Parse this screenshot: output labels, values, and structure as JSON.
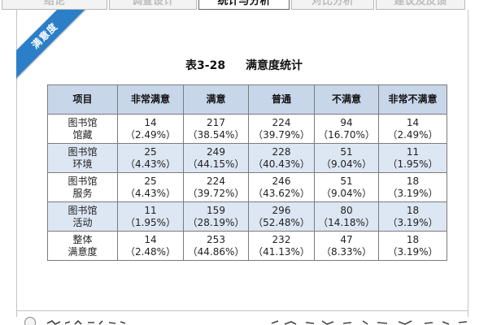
{
  "tabs": [
    {
      "label": "结论",
      "active": false
    },
    {
      "label": "调查设计",
      "active": false
    },
    {
      "label": "统计与分析",
      "active": true
    },
    {
      "label": "对比分析",
      "active": false
    },
    {
      "label": "建议及反馈",
      "active": false
    }
  ],
  "ribbon": {
    "label": "满意度"
  },
  "table": {
    "caption_number": "表3-28",
    "caption_title": "满意度统计",
    "headers": [
      "项目",
      "非常满意",
      "满意",
      "普通",
      "不满意",
      "非常不满意"
    ],
    "rows": [
      {
        "label": [
          "图书馆",
          "馆藏"
        ],
        "cells": [
          [
            "14",
            "（2.49%）"
          ],
          [
            "217",
            "（38.54%）"
          ],
          [
            "224",
            "（39.79%）"
          ],
          [
            "94",
            "（16.70%）"
          ],
          [
            "14",
            "（2.49%）"
          ]
        ]
      },
      {
        "label": [
          "图书馆",
          "环境"
        ],
        "cells": [
          [
            "25",
            "（4.43%）"
          ],
          [
            "249",
            "（44.15%）"
          ],
          [
            "228",
            "（40.43%）"
          ],
          [
            "51",
            "（9.04%）"
          ],
          [
            "11",
            "（1.95%）"
          ]
        ]
      },
      {
        "label": [
          "图书馆",
          "服务"
        ],
        "cells": [
          [
            "25",
            "（4.43%）"
          ],
          [
            "224",
            "（39.72%）"
          ],
          [
            "246",
            "（43.62%）"
          ],
          [
            "51",
            "（9.04%）"
          ],
          [
            "18",
            "（3.19%）"
          ]
        ]
      },
      {
        "label": [
          "图书馆",
          "活动"
        ],
        "cells": [
          [
            "11",
            "（1.95%）"
          ],
          [
            "159",
            "（28.19%）"
          ],
          [
            "296",
            "（52.48%）"
          ],
          [
            "80",
            "（14.18%）"
          ],
          [
            "18",
            "（3.19%）"
          ]
        ]
      },
      {
        "label": [
          "整体",
          "满意度"
        ],
        "cells": [
          [
            "14",
            "（2.48%）"
          ],
          [
            "253",
            "（44.86%）"
          ],
          [
            "232",
            "（41.13%）"
          ],
          [
            "47",
            "（8.33%）"
          ],
          [
            "18",
            "（3.19%）"
          ]
        ]
      }
    ]
  },
  "colors": {
    "ribbon": "#2b7fc9",
    "header_fill": "#c8d6ea",
    "stripe_fill": "#dde6f3"
  }
}
